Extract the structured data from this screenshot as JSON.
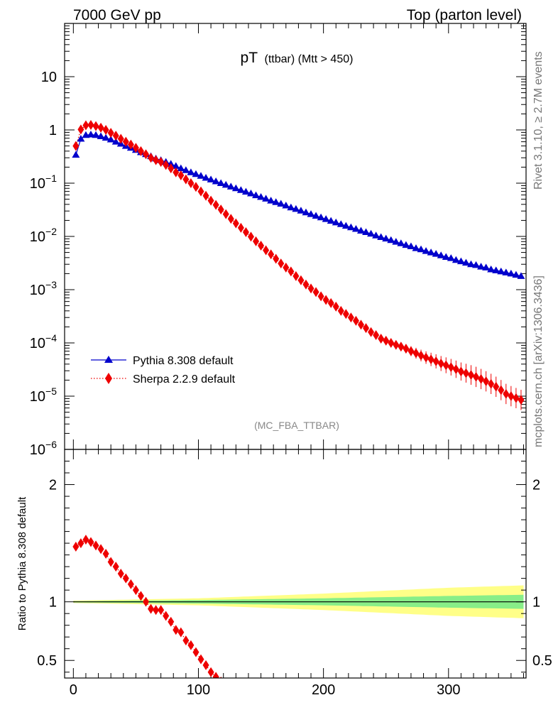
{
  "header": {
    "left": "7000 GeV pp",
    "right": "Top (parton level)"
  },
  "side_labels": {
    "rivet": "Rivet 3.1.10, ≥ 2.7M events",
    "mcplots": "mcplots.cern.ch [arXiv:1306.3436]"
  },
  "chart_data": {
    "type": "scatter",
    "title": {
      "main": "pT",
      "sub": "(ttbar) (Mtt > 450)"
    },
    "analysis_tag": "(MC_FBA_TTBAR)",
    "main_panel": {
      "y_scale": "log",
      "ylim": [
        1e-06,
        100
      ],
      "y_ticks": [
        {
          "exp": 1,
          "label": "10"
        },
        {
          "exp": 0,
          "label": "1"
        },
        {
          "exp": -1,
          "label": "10",
          "sup": "−1"
        },
        {
          "exp": -2,
          "label": "10",
          "sup": "−2"
        },
        {
          "exp": -3,
          "label": "10",
          "sup": "−3"
        },
        {
          "exp": -4,
          "label": "10",
          "sup": "−4"
        },
        {
          "exp": -5,
          "label": "10",
          "sup": "−5"
        },
        {
          "exp": -6,
          "label": "10",
          "sup": "−6"
        }
      ]
    },
    "ratio_panel": {
      "ylabel": "Ratio to Pythia 8.308 default",
      "ylim": [
        0.35,
        2.3
      ],
      "y_ticks": [
        {
          "value": 2,
          "label": "2"
        },
        {
          "value": 1,
          "label": "1"
        },
        {
          "value": 0.5,
          "label": "0.5"
        }
      ],
      "band_inner_halfwidth": {
        "x": [
          0,
          100,
          200,
          300,
          360
        ],
        "v": [
          0.005,
          0.015,
          0.03,
          0.05,
          0.06
        ]
      },
      "band_outer_halfwidth": {
        "x": [
          0,
          100,
          200,
          300,
          360
        ],
        "v": [
          0.01,
          0.03,
          0.07,
          0.12,
          0.14
        ]
      }
    },
    "xlim": [
      -7,
      362
    ],
    "x_ticks": [
      {
        "value": 0,
        "label": "0"
      },
      {
        "value": 100,
        "label": "100"
      },
      {
        "value": 200,
        "label": "200"
      },
      {
        "value": 300,
        "label": "300"
      }
    ],
    "legend_position": "lower-left",
    "series": [
      {
        "name": "Pythia 8.308 default",
        "color": "#0000cc",
        "marker": "triangle",
        "line": "solid",
        "x": [
          2,
          6,
          10,
          14,
          18,
          22,
          26,
          30,
          34,
          38,
          42,
          46,
          50,
          54,
          58,
          62,
          66,
          70,
          74,
          78,
          82,
          86,
          90,
          94,
          98,
          102,
          106,
          110,
          114,
          118,
          122,
          126,
          130,
          134,
          138,
          142,
          146,
          150,
          154,
          158,
          162,
          166,
          170,
          174,
          178,
          182,
          186,
          190,
          194,
          198,
          202,
          206,
          210,
          214,
          218,
          222,
          226,
          230,
          234,
          238,
          242,
          246,
          250,
          254,
          258,
          262,
          266,
          270,
          274,
          278,
          282,
          286,
          290,
          294,
          298,
          302,
          306,
          310,
          314,
          318,
          322,
          326,
          330,
          334,
          338,
          342,
          346,
          350,
          354,
          358
        ],
        "y": [
          0.34,
          0.68,
          0.8,
          0.82,
          0.8,
          0.76,
          0.71,
          0.66,
          0.6,
          0.55,
          0.5,
          0.46,
          0.42,
          0.38,
          0.35,
          0.32,
          0.29,
          0.27,
          0.25,
          0.23,
          0.21,
          0.19,
          0.175,
          0.16,
          0.148,
          0.137,
          0.126,
          0.117,
          0.108,
          0.1,
          0.093,
          0.086,
          0.08,
          0.074,
          0.069,
          0.064,
          0.059,
          0.055,
          0.051,
          0.047,
          0.044,
          0.041,
          0.038,
          0.035,
          0.0327,
          0.0304,
          0.0282,
          0.0262,
          0.0244,
          0.0227,
          0.0211,
          0.0196,
          0.0183,
          0.017,
          0.0158,
          0.0148,
          0.0138,
          0.0128,
          0.012,
          0.0112,
          0.0104,
          0.0097,
          0.0091,
          0.0085,
          0.0079,
          0.0074,
          0.0069,
          0.0065,
          0.006,
          0.0057,
          0.0053,
          0.005,
          0.0047,
          0.0044,
          0.0041,
          0.0039,
          0.0036,
          0.0034,
          0.0032,
          0.003,
          0.0029,
          0.0027,
          0.0026,
          0.0024,
          0.0023,
          0.0022,
          0.0021,
          0.002,
          0.0019,
          0.0018
        ]
      },
      {
        "name": "Sherpa 2.2.9 default",
        "color": "#ee0000",
        "marker": "diamond",
        "line": "dotted",
        "x": [
          2,
          6,
          10,
          14,
          18,
          22,
          26,
          30,
          34,
          38,
          42,
          46,
          50,
          54,
          58,
          62,
          66,
          70,
          74,
          78,
          82,
          86,
          90,
          94,
          98,
          102,
          106,
          110,
          114,
          118,
          122,
          126,
          130,
          134,
          138,
          142,
          146,
          150,
          154,
          158,
          162,
          166,
          170,
          174,
          178,
          182,
          186,
          190,
          194,
          198,
          202,
          206,
          210,
          214,
          218,
          222,
          226,
          230,
          234,
          238,
          242,
          246,
          250,
          254,
          258,
          262,
          266,
          270,
          274,
          278,
          282,
          286,
          290,
          294,
          298,
          302,
          306,
          310,
          314,
          318,
          322,
          326,
          330,
          334,
          338,
          342,
          346,
          350,
          354,
          358
        ],
        "y": [
          0.5,
          1.02,
          1.22,
          1.24,
          1.18,
          1.1,
          1.0,
          0.88,
          0.78,
          0.68,
          0.6,
          0.53,
          0.46,
          0.4,
          0.35,
          0.3,
          0.27,
          0.25,
          0.22,
          0.19,
          0.16,
          0.14,
          0.118,
          0.1,
          0.085,
          0.07,
          0.058,
          0.047,
          0.039,
          0.032,
          0.0262,
          0.0214,
          0.0176,
          0.0145,
          0.012,
          0.0099,
          0.0081,
          0.0067,
          0.0055,
          0.0046,
          0.0038,
          0.0031,
          0.0026,
          0.0022,
          0.0018,
          0.0015,
          0.00125,
          0.00105,
          0.0009,
          0.00075,
          0.00064,
          0.00056,
          0.00048,
          0.0004,
          0.00035,
          0.0003,
          0.00026,
          0.00022,
          0.00019,
          0.00016,
          0.00014,
          0.00012,
          0.00011,
          0.0001,
          9.2e-05,
          8.5e-05,
          7.8e-05,
          7e-05,
          6.4e-05,
          5.8e-05,
          5.3e-05,
          4.9e-05,
          4.5e-05,
          4.1e-05,
          3.8e-05,
          3.5e-05,
          3.2e-05,
          2.9e-05,
          2.7e-05,
          2.5e-05,
          2.3e-05,
          2.1e-05,
          1.9e-05,
          1.7e-05,
          1.5e-05,
          1.3e-05,
          1.1e-05,
          1e-05,
          9.2e-06,
          8.5e-06
        ],
        "ratio": [
          1.47,
          1.5,
          1.53,
          1.51,
          1.48,
          1.45,
          1.41,
          1.34,
          1.3,
          1.24,
          1.2,
          1.15,
          1.1,
          1.05,
          1.0,
          0.94,
          0.93,
          0.93,
          0.88,
          0.83,
          0.76,
          0.74,
          0.67,
          0.63,
          0.57,
          0.51,
          0.46,
          0.4,
          0.36,
          0.32
        ]
      }
    ]
  }
}
